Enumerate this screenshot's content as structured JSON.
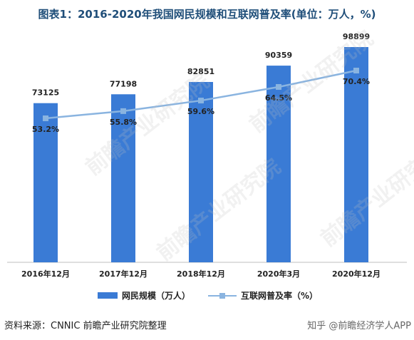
{
  "title": "图表1：2016-2020年我国网民规模和互联网普及率(单位：万人，%)",
  "source": "资料来源：CNNIC 前瞻产业研究院整理",
  "credit": "知乎 @前瞻经济学人APP",
  "watermark": "前瞻产业研究院",
  "colors": {
    "bar": "#3a7bd5",
    "line": "#8ab4e0",
    "title": "#1f4e79"
  },
  "chart_data": {
    "type": "bar",
    "categories": [
      "2016年12月",
      "2017年12月",
      "2018年12月",
      "2020年3月",
      "2020年12月"
    ],
    "series": [
      {
        "name": "网民规模（万人）",
        "type": "bar",
        "values": [
          73125,
          77198,
          82851,
          90359,
          98899
        ],
        "labels": [
          "73125",
          "77198",
          "82851",
          "90359",
          "98899"
        ]
      },
      {
        "name": "互联网普及率（%）",
        "type": "line",
        "values": [
          53.2,
          55.8,
          59.6,
          64.5,
          70.4
        ],
        "labels": [
          "53.2%",
          "55.8%",
          "59.6%",
          "64.5%",
          "70.4%"
        ]
      }
    ],
    "legend": "bottom",
    "grid": false
  }
}
